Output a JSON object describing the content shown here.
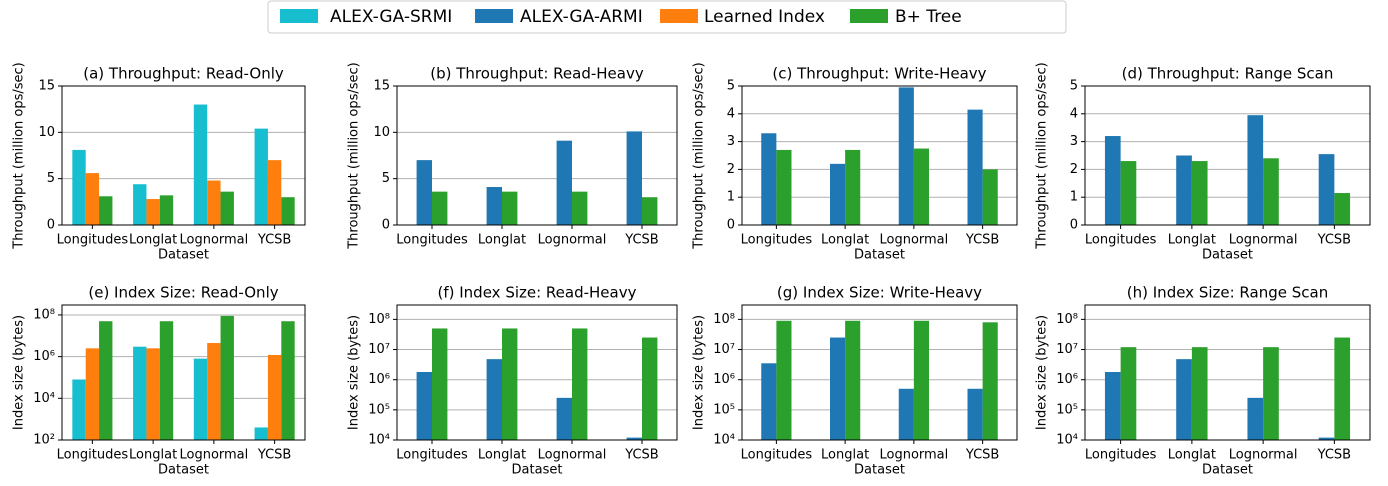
{
  "chart_data": [
    {
      "type": "bar",
      "title": "(a) Throughput: Read-Only",
      "ylabel": "Throughput (million ops/sec)",
      "xlabel": "Dataset",
      "categories": [
        "Longitudes",
        "Longlat",
        "Lognormal",
        "YCSB"
      ],
      "series": [
        {
          "name": "ALEX-GA-SRMI",
          "color": "#17becf",
          "values": [
            8.1,
            4.4,
            13.0,
            10.4
          ]
        },
        {
          "name": "ALEX-GA-ARMI",
          "color": "#1f77b4",
          "values": [
            null,
            null,
            null,
            null
          ]
        },
        {
          "name": "Learned Index",
          "color": "#ff7f0e",
          "values": [
            5.6,
            2.8,
            4.8,
            7.0
          ]
        },
        {
          "name": "B+ Tree",
          "color": "#2ca02c",
          "values": [
            3.1,
            3.2,
            3.6,
            3.0
          ]
        }
      ],
      "ylim": [
        0,
        15
      ],
      "yticks": [
        0,
        5,
        10,
        15
      ],
      "grid": true
    },
    {
      "type": "bar",
      "title": "(b) Throughput: Read-Heavy",
      "ylabel": "Throughput (million ops/sec)",
      "categories": [
        "Longitudes",
        "Longlat",
        "Lognormal",
        "YCSB"
      ],
      "series": [
        {
          "name": "ALEX-GA-ARMI",
          "color": "#1f77b4",
          "values": [
            7.0,
            4.1,
            9.1,
            10.1
          ]
        },
        {
          "name": "B+ Tree",
          "color": "#2ca02c",
          "values": [
            3.6,
            3.6,
            3.6,
            3.0
          ]
        }
      ],
      "ylim": [
        0,
        15
      ],
      "yticks": [
        0,
        5,
        10,
        15
      ],
      "grid": true
    },
    {
      "type": "bar",
      "title": "(c) Throughput: Write-Heavy",
      "ylabel": "Throughput (million ops/sec)",
      "xlabel": "Dataset",
      "categories": [
        "Longitudes",
        "Longlat",
        "Lognormal",
        "YCSB"
      ],
      "series": [
        {
          "name": "ALEX-GA-ARMI",
          "color": "#1f77b4",
          "values": [
            3.3,
            2.2,
            4.95,
            4.15
          ]
        },
        {
          "name": "B+ Tree",
          "color": "#2ca02c",
          "values": [
            2.7,
            2.7,
            2.75,
            2.0
          ]
        }
      ],
      "ylim": [
        0,
        5
      ],
      "yticks": [
        0,
        1,
        2,
        3,
        4,
        5
      ],
      "grid": true
    },
    {
      "type": "bar",
      "title": "(d) Throughput: Range Scan",
      "ylabel": "Throughput (million ops/sec)",
      "xlabel": "Dataset",
      "categories": [
        "Longitudes",
        "Longlat",
        "Lognormal",
        "YCSB"
      ],
      "series": [
        {
          "name": "ALEX-GA-ARMI",
          "color": "#1f77b4",
          "values": [
            3.2,
            2.5,
            3.95,
            2.55
          ]
        },
        {
          "name": "B+ Tree",
          "color": "#2ca02c",
          "values": [
            2.3,
            2.3,
            2.4,
            1.15
          ]
        }
      ],
      "ylim": [
        0,
        5
      ],
      "yticks": [
        0,
        1,
        2,
        3,
        4,
        5
      ],
      "grid": true
    },
    {
      "type": "bar",
      "title": "(e) Index Size: Read-Only",
      "ylabel": "Index size (bytes)",
      "xlabel": "Dataset",
      "yscale": "log",
      "categories": [
        "Longitudes",
        "Longlat",
        "Lognormal",
        "YCSB"
      ],
      "series": [
        {
          "name": "ALEX-GA-SRMI",
          "color": "#17becf",
          "values": [
            80000,
            3000000,
            800000,
            400
          ]
        },
        {
          "name": "Learned Index",
          "color": "#ff7f0e",
          "values": [
            2500000,
            2500000,
            4500000,
            1200000
          ]
        },
        {
          "name": "B+ Tree",
          "color": "#2ca02c",
          "values": [
            50000000,
            50000000,
            90000000,
            50000000
          ]
        }
      ],
      "ylim": [
        100,
        300000000
      ],
      "yticks": [
        {
          "value": 100,
          "label": "10²"
        },
        {
          "value": 10000,
          "label": "10⁴"
        },
        {
          "value": 1000000,
          "label": "10⁶"
        },
        {
          "value": 100000000,
          "label": "10⁸"
        }
      ],
      "grid": true
    },
    {
      "type": "bar",
      "title": "(f) Index Size: Read-Heavy",
      "ylabel": "Index size (bytes)",
      "xlabel": "Dataset",
      "yscale": "log",
      "categories": [
        "Longitudes",
        "Longlat",
        "Lognormal",
        "YCSB"
      ],
      "series": [
        {
          "name": "ALEX-GA-ARMI",
          "color": "#1f77b4",
          "values": [
            1800000,
            4800000,
            250000,
            12000
          ]
        },
        {
          "name": "B+ Tree",
          "color": "#2ca02c",
          "values": [
            50000000,
            50000000,
            50000000,
            25000000
          ]
        }
      ],
      "ylim": [
        10000,
        300000000
      ],
      "yticks": [
        {
          "value": 10000,
          "label": "10⁴"
        },
        {
          "value": 100000,
          "label": "10⁵"
        },
        {
          "value": 1000000,
          "label": "10⁶"
        },
        {
          "value": 10000000,
          "label": "10⁷"
        },
        {
          "value": 100000000,
          "label": "10⁸"
        }
      ],
      "grid": true
    },
    {
      "type": "bar",
      "title": "(g) Index Size: Write-Heavy",
      "ylabel": "Index size (bytes)",
      "xlabel": "Dataset",
      "yscale": "log",
      "categories": [
        "Longitudes",
        "Longlat",
        "Lognormal",
        "YCSB"
      ],
      "series": [
        {
          "name": "ALEX-GA-ARMI",
          "color": "#1f77b4",
          "values": [
            3500000,
            25000000,
            500000,
            500000
          ]
        },
        {
          "name": "B+ Tree",
          "color": "#2ca02c",
          "values": [
            90000000,
            90000000,
            90000000,
            80000000
          ]
        }
      ],
      "ylim": [
        10000,
        300000000
      ],
      "yticks": [
        {
          "value": 10000,
          "label": "10⁴"
        },
        {
          "value": 100000,
          "label": "10⁵"
        },
        {
          "value": 1000000,
          "label": "10⁶"
        },
        {
          "value": 10000000,
          "label": "10⁷"
        },
        {
          "value": 100000000,
          "label": "10⁸"
        }
      ],
      "grid": true
    },
    {
      "type": "bar",
      "title": "(h) Index Size: Range Scan",
      "ylabel": "Index size (bytes)",
      "xlabel": "Dataset",
      "yscale": "log",
      "categories": [
        "Longitudes",
        "Longlat",
        "Lognormal",
        "YCSB"
      ],
      "series": [
        {
          "name": "ALEX-GA-ARMI",
          "color": "#1f77b4",
          "values": [
            1800000,
            4800000,
            250000,
            12000
          ]
        },
        {
          "name": "B+ Tree",
          "color": "#2ca02c",
          "values": [
            12000000,
            12000000,
            12000000,
            25000000
          ]
        }
      ],
      "ylim": [
        10000,
        300000000
      ],
      "yticks": [
        {
          "value": 10000,
          "label": "10⁴"
        },
        {
          "value": 100000,
          "label": "10⁵"
        },
        {
          "value": 1000000,
          "label": "10⁶"
        },
        {
          "value": 10000000,
          "label": "10⁷"
        },
        {
          "value": 100000000,
          "label": "10⁸"
        }
      ],
      "grid": true
    }
  ]
}
